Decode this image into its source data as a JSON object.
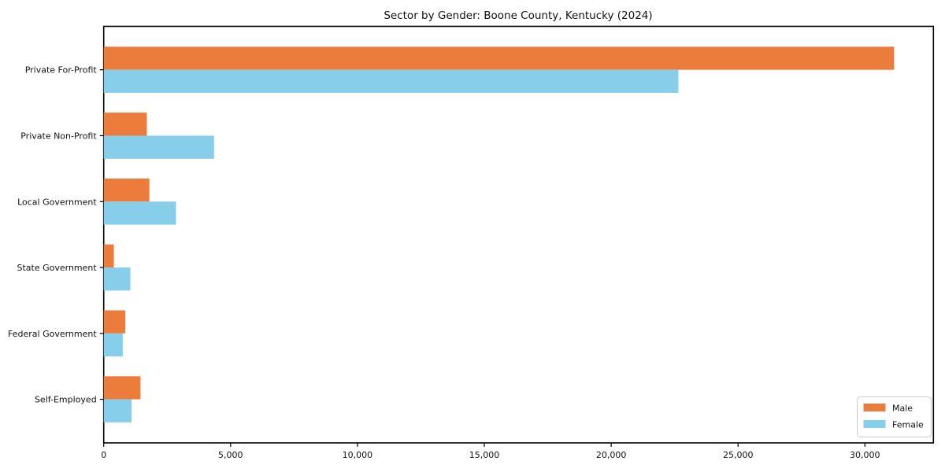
{
  "chart_data": {
    "type": "bar",
    "orientation": "horizontal",
    "title": "Sector by Gender: Boone County, Kentucky (2024)",
    "categories": [
      "Private For-Profit",
      "Private Non-Profit",
      "Local Government",
      "State Government",
      "Federal Government",
      "Self-Employed"
    ],
    "series": [
      {
        "name": "Male",
        "color": "#EB7C3C",
        "values": [
          31150,
          1700,
          1800,
          400,
          850,
          1450
        ]
      },
      {
        "name": "Female",
        "color": "#87CEEB",
        "values": [
          22650,
          4350,
          2850,
          1050,
          750,
          1100
        ]
      }
    ],
    "xlabel": "",
    "ylabel": "",
    "xlim": [
      0,
      32700
    ],
    "x_ticks": {
      "values": [
        0,
        5000,
        10000,
        15000,
        20000,
        25000,
        30000
      ],
      "labels": [
        "0",
        "5,000",
        "10,000",
        "15,000",
        "20,000",
        "25,000",
        "30,000"
      ]
    },
    "grid": false,
    "legend_position": "lower right",
    "axis_color": "#000000",
    "background_color": "#ffffff"
  }
}
